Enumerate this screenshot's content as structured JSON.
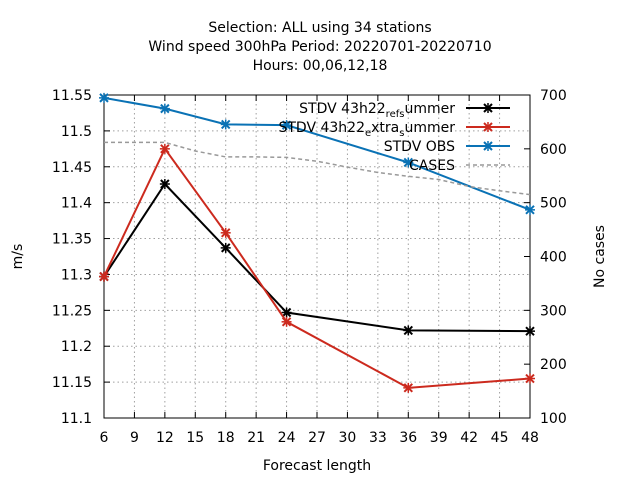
{
  "chart_data": {
    "type": "line",
    "title": [
      "Selection: ALL using    34 stations",
      "Wind speed 300hPa   Period: 20220701-20220710",
      "Hours:  00,06,12,18"
    ],
    "xlabel": "Forecast length",
    "ylabel": "m/s",
    "y2label": "No cases",
    "xlim": [
      6,
      48
    ],
    "ylim": [
      11.1,
      11.55
    ],
    "y2lim": [
      100,
      700
    ],
    "xticks": [
      6,
      9,
      12,
      15,
      18,
      21,
      24,
      27,
      30,
      33,
      36,
      39,
      42,
      45,
      48
    ],
    "yticks": [
      11.1,
      11.15,
      11.2,
      11.25,
      11.3,
      11.35,
      11.4,
      11.45,
      11.5,
      11.55
    ],
    "y2ticks": [
      100,
      200,
      300,
      400,
      500,
      600,
      700
    ],
    "grid": true,
    "legend_position": "top-right",
    "series": [
      {
        "name": "STDV 43h22_ref_summer",
        "legend_parts": [
          [
            "STDV 43h22",
            ""
          ],
          [
            "ref",
            "sub"
          ],
          [
            "s",
            "sub"
          ],
          [
            "ummer",
            ""
          ]
        ],
        "axis": "y",
        "color": "#000000",
        "marker": "x",
        "x": [
          6,
          12,
          18,
          24,
          36,
          48
        ],
        "values": [
          11.297,
          11.426,
          11.337,
          11.247,
          11.222,
          11.221
        ]
      },
      {
        "name": "STDV 43h22_extra_summer",
        "legend_parts": [
          [
            "STDV 43h22",
            ""
          ],
          [
            "e",
            "sub"
          ],
          [
            "xtra",
            ""
          ],
          [
            "s",
            "sub"
          ],
          [
            "ummer",
            ""
          ]
        ],
        "axis": "y",
        "color": "#cc2a1e",
        "marker": "x",
        "x": [
          6,
          12,
          18,
          24,
          36,
          48
        ],
        "values": [
          11.297,
          11.475,
          11.358,
          11.234,
          11.142,
          11.155
        ]
      },
      {
        "name": "STDV OBS",
        "legend_parts": [
          [
            "STDV OBS",
            ""
          ]
        ],
        "axis": "y",
        "color": "#0a72b5",
        "marker": "x",
        "x": [
          6,
          12,
          18,
          24,
          36,
          48
        ],
        "values": [
          11.546,
          11.531,
          11.509,
          11.508,
          11.456,
          11.39
        ]
      },
      {
        "name": "CASES",
        "legend_parts": [
          [
            "CASES",
            ""
          ]
        ],
        "axis": "y2",
        "color": "#999999",
        "dashed": true,
        "marker": "none",
        "x": [
          6,
          9,
          12,
          15,
          18,
          21,
          24,
          27,
          30,
          33,
          36,
          39,
          42,
          45,
          48
        ],
        "values": [
          612,
          612,
          612,
          596,
          585,
          585,
          584,
          577,
          566,
          556,
          549,
          543,
          530,
          522,
          515
        ]
      }
    ]
  }
}
